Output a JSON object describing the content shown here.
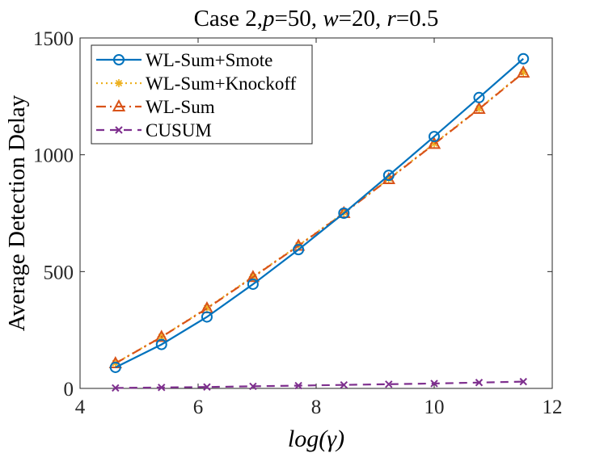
{
  "chart_data": {
    "type": "line",
    "title": "Case 2,p=50, w=20, r=0.5",
    "title_parts": [
      {
        "text": "Case 2,",
        "italic": false
      },
      {
        "text": "p",
        "italic": true
      },
      {
        "text": "=50, ",
        "italic": false
      },
      {
        "text": "w",
        "italic": true
      },
      {
        "text": "=20, ",
        "italic": false
      },
      {
        "text": "r",
        "italic": true
      },
      {
        "text": "=0.5",
        "italic": false
      }
    ],
    "xlabel": "log(γ)",
    "ylabel": "Average Detection Delay",
    "xlim": [
      4,
      12
    ],
    "ylim": [
      0,
      1500
    ],
    "xticks": [
      4,
      6,
      8,
      10,
      12
    ],
    "yticks": [
      0,
      500,
      1000,
      1500
    ],
    "legend_position": "top-left",
    "x": [
      4.6,
      5.38,
      6.15,
      6.93,
      7.7,
      8.47,
      9.23,
      10.0,
      10.76,
      11.51
    ],
    "series": [
      {
        "name": "WL-Sum+Smote",
        "color": "#0072BD",
        "dash": "solid",
        "marker": "circle",
        "values": [
          90,
          188,
          306,
          446,
          594,
          750,
          912,
          1078,
          1245,
          1411
        ]
      },
      {
        "name": "WL-Sum+Knockoff",
        "color": "#EDB120",
        "dash": "dotted",
        "marker": "asterisk",
        "values": [
          108,
          221,
          344,
          478,
          612,
          752,
          897,
          1048,
          1198,
          1353
        ]
      },
      {
        "name": "WL-Sum",
        "color": "#D95319",
        "dash": "dashdot",
        "marker": "triangle",
        "values": [
          107,
          220,
          342,
          476,
          610,
          750,
          895,
          1046,
          1196,
          1351
        ]
      },
      {
        "name": "CUSUM",
        "color": "#7E2F8E",
        "dash": "dashed",
        "marker": "x",
        "values": [
          2,
          4,
          6,
          9,
          12,
          15,
          18,
          21,
          25,
          29
        ]
      }
    ]
  }
}
